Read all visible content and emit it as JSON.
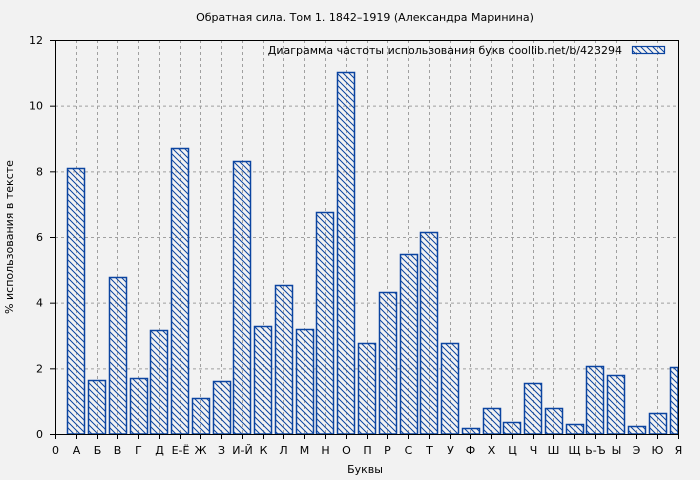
{
  "chart_data": {
    "type": "bar",
    "title": "Обратная сила. Том 1. 1842–1919 (Александра Маринина)",
    "xlabel": "Буквы",
    "ylabel": "% использования в тексте",
    "ylim": [
      0,
      12
    ],
    "yticks": [
      0,
      2,
      4,
      6,
      8,
      10,
      12
    ],
    "grid": true,
    "legend": {
      "position": "top-right",
      "entries": [
        "Диаграмма частоты использования букв  coollib.net/b/423294"
      ]
    },
    "x_tick_labels": [
      "0",
      "А",
      "Б",
      "В",
      "Г",
      "Д",
      "Е-Ё",
      "Ж",
      "З",
      "И-Й",
      "К",
      "Л",
      "М",
      "Н",
      "О",
      "П",
      "Р",
      "С",
      "Т",
      "У",
      "Ф",
      "Х",
      "Ц",
      "Ч",
      "Ш",
      "Щ",
      "Ь-Ъ",
      "Ы",
      "Э",
      "Ю",
      "Я"
    ],
    "categories": [
      "А",
      "Б",
      "В",
      "Г",
      "Д",
      "Е-Ё",
      "Ж",
      "З",
      "И-Й",
      "К",
      "Л",
      "М",
      "Н",
      "О",
      "П",
      "Р",
      "С",
      "Т",
      "У",
      "Ф",
      "Х",
      "Ц",
      "Ч",
      "Ш",
      "Щ",
      "Ь-Ъ",
      "Ы",
      "Э",
      "Ю",
      "Я"
    ],
    "series": [
      {
        "name": "Диаграмма частоты использования букв  coollib.net/b/423294",
        "values": [
          8.1,
          1.65,
          4.78,
          1.7,
          3.17,
          8.7,
          1.1,
          1.62,
          8.3,
          3.29,
          4.53,
          3.2,
          6.76,
          11.02,
          2.77,
          4.32,
          5.48,
          6.15,
          2.77,
          0.18,
          0.79,
          0.37,
          1.55,
          0.79,
          0.3,
          2.07,
          1.8,
          0.25,
          0.64,
          2.04
        ]
      }
    ],
    "colors": {
      "bar_stroke": "#0b44a0",
      "grid": "#a0a0a0",
      "background": "#f2f2f2"
    }
  }
}
